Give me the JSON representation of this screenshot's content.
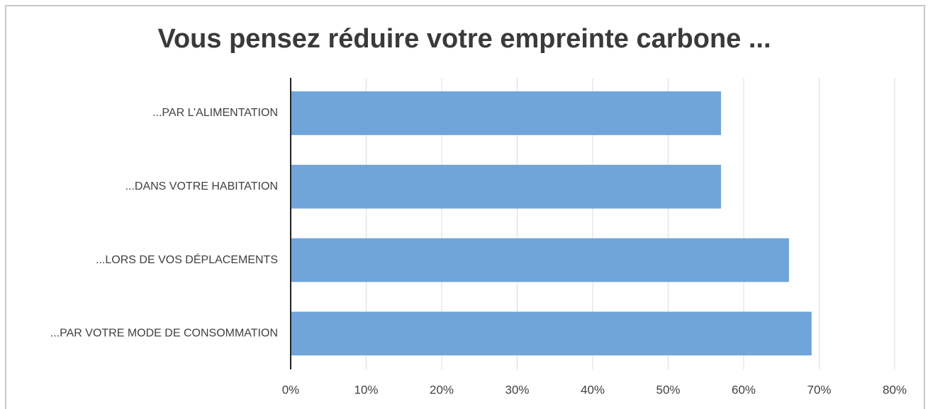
{
  "chart_data": {
    "type": "bar",
    "orientation": "horizontal",
    "title": "Vous pensez réduire votre empreinte carbone ...",
    "categories": [
      "...PAR L’ALIMENTATION",
      "...DANS VOTRE HABITATION",
      "...LORS DE VOS DÉPLACEMENTS",
      "...PAR VOTRE MODE DE CONSOMMATION"
    ],
    "values": [
      57,
      57,
      66,
      69
    ],
    "color": "#70a5da",
    "xlim": [
      0,
      80
    ],
    "xticks": [
      {
        "value": 0,
        "label": "0%"
      },
      {
        "value": 10,
        "label": "10%"
      },
      {
        "value": 20,
        "label": "20%"
      },
      {
        "value": 30,
        "label": "30%"
      },
      {
        "value": 40,
        "label": "40%"
      },
      {
        "value": 50,
        "label": "50%"
      },
      {
        "value": 60,
        "label": "60%"
      },
      {
        "value": 70,
        "label": "70%"
      },
      {
        "value": 80,
        "label": "80%"
      }
    ],
    "grid": true
  }
}
